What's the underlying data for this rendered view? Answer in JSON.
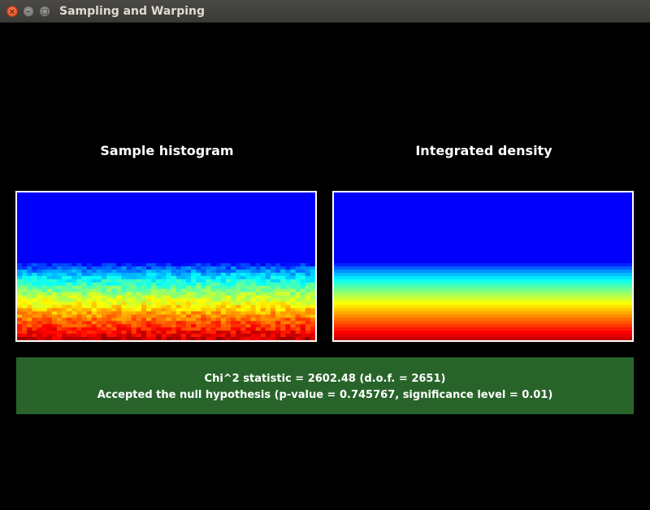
{
  "window": {
    "title": "Sampling and Warping",
    "buttons": {
      "close_icon": "close-icon",
      "minimize_icon": "minimize-icon",
      "maximize_icon": "maximize-icon"
    }
  },
  "panels": {
    "left_title": "Sample histogram",
    "right_title": "Integrated density"
  },
  "result": {
    "line1": "Chi^2 statistic = 2602.48 (d.o.f. = 2651)",
    "line2": "Accepted the null hypothesis (p-value = 0.745767, significance level = 0.01)",
    "background_color": "#28642a"
  },
  "colors": {
    "background": "#000000",
    "plot_border": "#ffffff",
    "low_density": "#0000ff",
    "high_density": "#ff2a00"
  }
}
